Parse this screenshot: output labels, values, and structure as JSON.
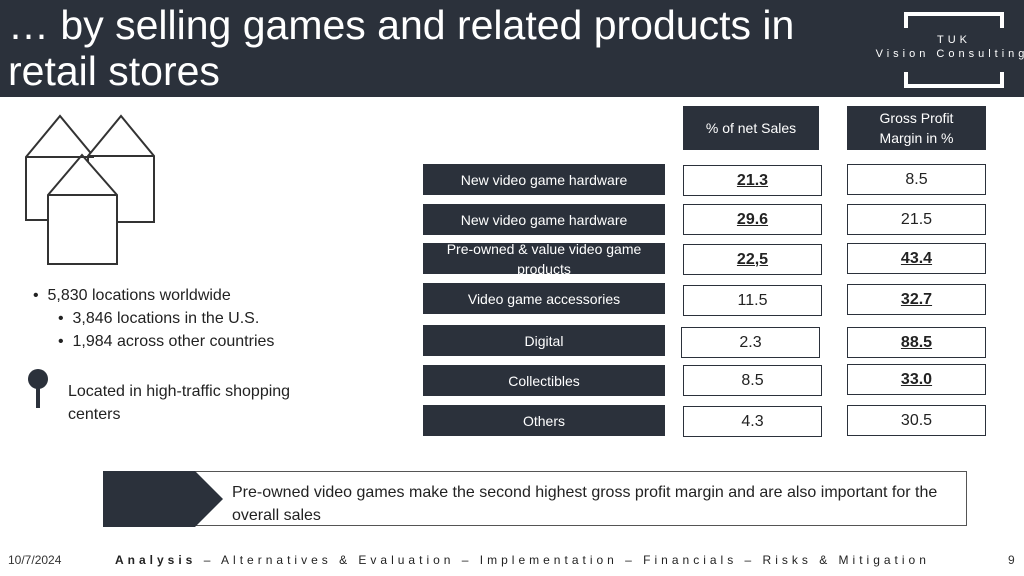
{
  "header": {
    "title": "… by selling games and related products in retail stores",
    "logo": {
      "name": "TUK",
      "subtitle": "Vision Consulting"
    }
  },
  "locations": {
    "main": "5,830 locations worldwide",
    "sub": [
      "3,846 locations in the U.S.",
      "1,984 across other countries"
    ]
  },
  "placement": "Located in high-traffic shopping centers",
  "table": {
    "headers": [
      "% of net Sales",
      "Gross Profit Margin in %"
    ],
    "rows": [
      [
        "New video game hardware",
        "21.3",
        "8.5"
      ],
      [
        "New video game hardware",
        "29.6",
        "21.5"
      ],
      [
        "Pre-owned & value video game products",
        "22,5",
        "43.4"
      ],
      [
        "Video game accessories",
        "11.5",
        "32.7"
      ],
      [
        "Digital",
        "2.3",
        "88.5"
      ],
      [
        "Collectibles",
        "8.5",
        "33.0"
      ],
      [
        "Others",
        "4.3",
        "30.5"
      ]
    ]
  },
  "callout": "Pre-owned video games make the second highest gross profit margin and are also important for the overall sales",
  "footer": {
    "date": "10/7/2024",
    "nav_current": "Analysis",
    "nav_rest": "– Alternatives & Evaluation – Implementation – Financials – Risks & Mitigation",
    "page": "9"
  }
}
